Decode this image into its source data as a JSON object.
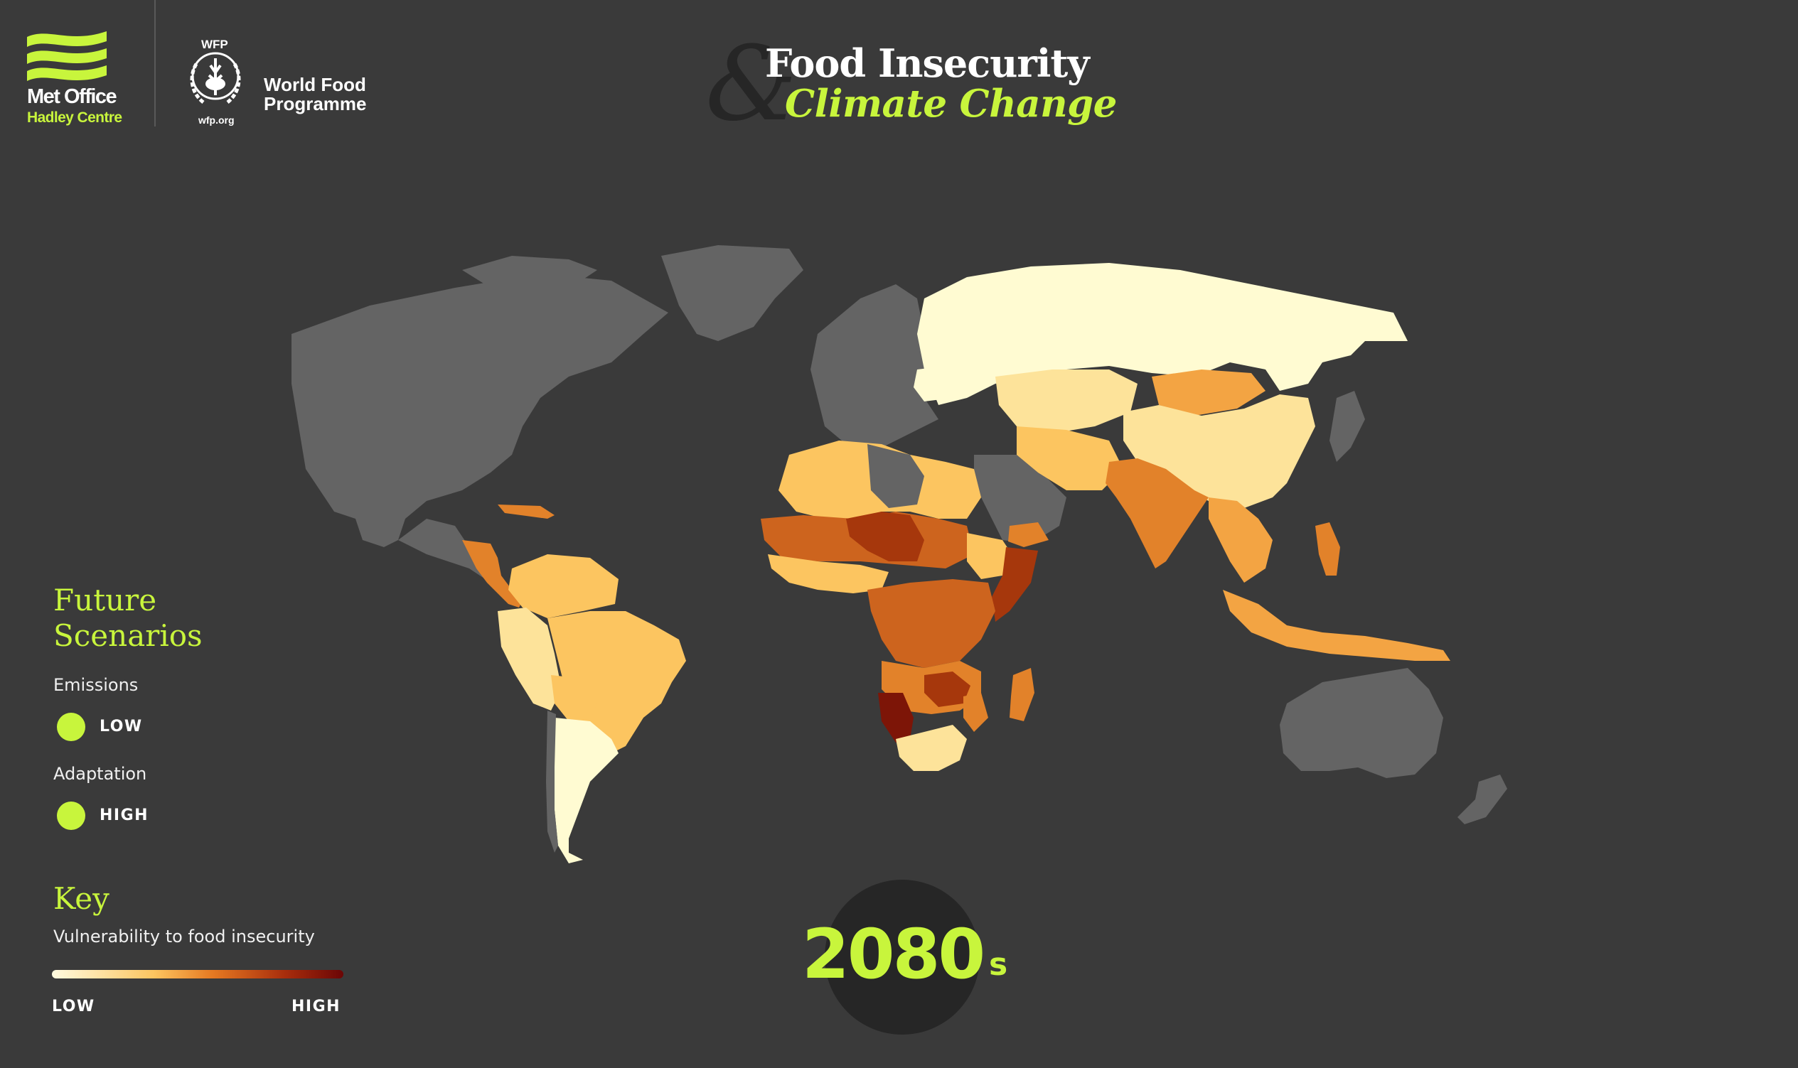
{
  "header": {
    "met_office": {
      "name": "Met Office",
      "subtitle": "Hadley Centre"
    },
    "wfp": {
      "abbreviation": "WFP",
      "name": "World Food Programme",
      "url": "wfp.org"
    },
    "title": {
      "ampersand": "&",
      "line1": "Food Insecurity",
      "line2": "Climate Change"
    }
  },
  "scenarios": {
    "heading": "Future Scenarios",
    "emissions": {
      "label": "Emissions",
      "value": "LOW"
    },
    "adaptation": {
      "label": "Adaptation",
      "value": "HIGH"
    }
  },
  "key": {
    "heading": "Key",
    "description": "Vulnerability to food insecurity",
    "low_label": "LOW",
    "high_label": "HIGH",
    "gradient_colors": [
      "#fffbe0",
      "#fcc560",
      "#e67a22",
      "#a82d0c",
      "#6b0606"
    ]
  },
  "decade": {
    "value": "2080",
    "suffix": "s"
  },
  "colors": {
    "background": "#3a3a3a",
    "no_data_land": "#646464",
    "accent": "#c8f53c",
    "title": "#ffffff"
  },
  "map_legend_scale": {
    "very_low": "#fffbd2",
    "low": "#fde39a",
    "low_moderate": "#fcc560",
    "moderate": "#f3a443",
    "high_moderate": "#e2822a",
    "high": "#cd641e",
    "very_high": "#a6370c",
    "extreme": "#7d1507",
    "no_data": "#646464"
  }
}
